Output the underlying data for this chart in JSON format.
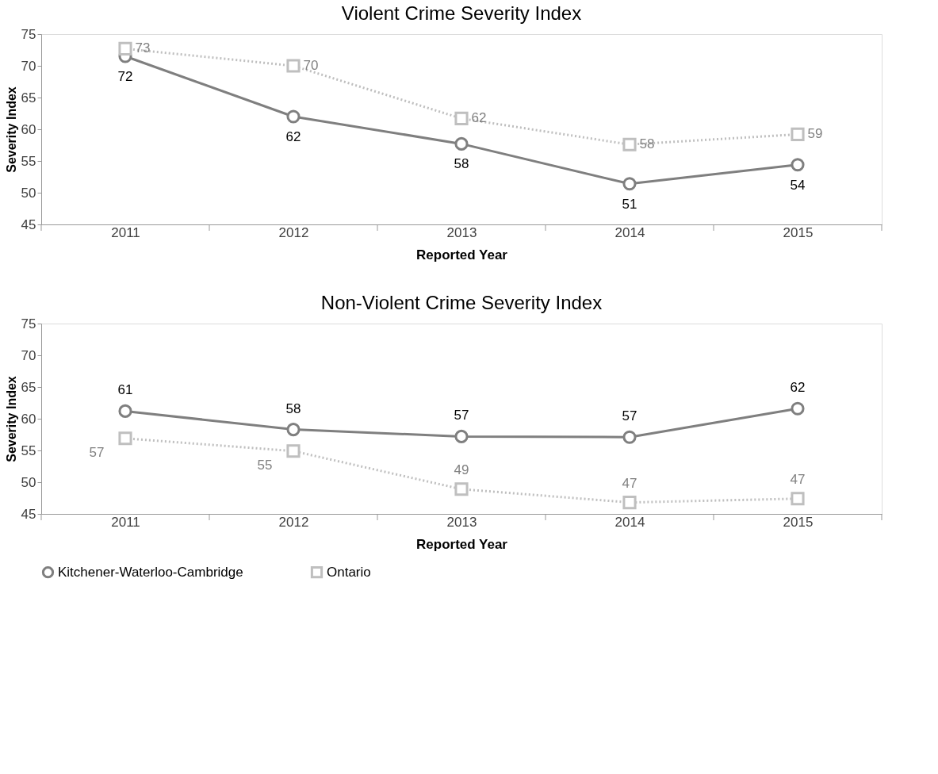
{
  "chart_data": [
    {
      "type": "line",
      "title": "Violent Crime Severity Index",
      "xlabel": "Reported Year",
      "ylabel": "Severity Index",
      "categories": [
        "2011",
        "2012",
        "2013",
        "2014",
        "2015"
      ],
      "ylim": [
        45,
        75
      ],
      "yticks": [
        45,
        50,
        55,
        60,
        65,
        70,
        75
      ],
      "grid": false,
      "legend": "bottom",
      "series": [
        {
          "name": "Kitchener-Waterloo-Cambridge",
          "color": "#7f7f7f",
          "marker": "circle",
          "line_style": "solid",
          "values": [
            71.5,
            62,
            57.7,
            51.4,
            54.4
          ],
          "value_labels": [
            "72",
            "62",
            "58",
            "51",
            "54"
          ]
        },
        {
          "name": "Ontario",
          "color": "#bfbfbf",
          "marker": "square",
          "line_style": "dotted",
          "values": [
            72.7,
            70,
            61.7,
            57.6,
            59.2
          ],
          "value_labels": [
            "73",
            "70",
            "62",
            "58",
            "59"
          ]
        }
      ]
    },
    {
      "type": "line",
      "title": "Non-Violent Crime Severity Index",
      "xlabel": "Reported Year",
      "ylabel": "Severity Index",
      "categories": [
        "2011",
        "2012",
        "2013",
        "2014",
        "2015"
      ],
      "ylim": [
        45,
        75
      ],
      "yticks": [
        45,
        50,
        55,
        60,
        65,
        70,
        75
      ],
      "grid": false,
      "legend": "bottom",
      "series": [
        {
          "name": "Kitchener-Waterloo-Cambridge",
          "color": "#7f7f7f",
          "marker": "circle",
          "line_style": "solid",
          "values": [
            61.2,
            58.3,
            57.2,
            57.1,
            61.6
          ],
          "value_labels": [
            "61",
            "58",
            "57",
            "57",
            "62"
          ]
        },
        {
          "name": "Ontario",
          "color": "#bfbfbf",
          "marker": "square",
          "line_style": "dotted",
          "values": [
            56.9,
            54.9,
            48.9,
            46.8,
            47.4
          ],
          "value_labels": [
            "57",
            "55",
            "49",
            "47",
            "47"
          ]
        }
      ]
    }
  ]
}
